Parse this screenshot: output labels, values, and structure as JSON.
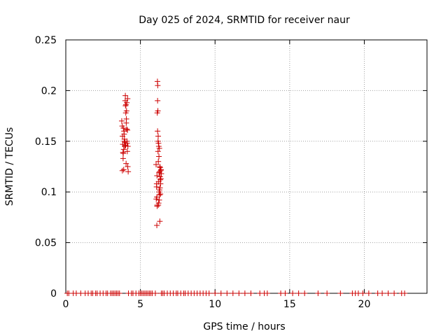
{
  "chart_data": {
    "type": "scatter",
    "title": "Day 025 of 2024, SRMTID for receiver naur",
    "xlabel": "GPS time / hours",
    "ylabel": "SRMTID / TECUs",
    "xlim": [
      0,
      24.2
    ],
    "ylim": [
      0,
      0.25
    ],
    "x_ticks": [
      {
        "value": 0,
        "label": "0"
      },
      {
        "value": 5,
        "label": "5"
      },
      {
        "value": 10,
        "label": "10"
      },
      {
        "value": 15,
        "label": "15"
      },
      {
        "value": 20,
        "label": "20"
      }
    ],
    "y_ticks": [
      {
        "value": 0,
        "label": "0"
      },
      {
        "value": 0.05,
        "label": "0.05"
      },
      {
        "value": 0.1,
        "label": "0.1"
      },
      {
        "value": 0.15,
        "label": "0.15"
      },
      {
        "value": 0.2,
        "label": "0.2"
      },
      {
        "value": 0.25,
        "label": "0.25"
      }
    ],
    "grid": true,
    "marker": "+",
    "color": "#cc0000",
    "series": [
      {
        "x": [
          3.75,
          3.78,
          3.8,
          3.82,
          3.85,
          3.88,
          3.9,
          3.92,
          3.95,
          3.98,
          4.0,
          4.02,
          4.05,
          4.08,
          4.1,
          4.12,
          4.15,
          4.18,
          3.86,
          3.93,
          3.97,
          4.03,
          4.07,
          4.11,
          3.83,
          3.79,
          4.14,
          3.99,
          3.91,
          4.01,
          4.06,
          4.16,
          3.84,
          3.96,
          4.09,
          4.13,
          3.88,
          4.04,
          6.05,
          6.08,
          6.1,
          6.12,
          6.15,
          6.18,
          6.2,
          6.22,
          6.25,
          6.28,
          6.3,
          6.32,
          6.35,
          6.38,
          6.4,
          6.15,
          6.17,
          6.19,
          6.21,
          6.23,
          6.1,
          6.12,
          6.26,
          6.29,
          6.31,
          6.33,
          6.36,
          6.14,
          6.16,
          6.24,
          6.27,
          6.34,
          6.11,
          6.22,
          6.3,
          6.18,
          6.09,
          6.37,
          6.13,
          6.25,
          6.2,
          6.28,
          6.06,
          6.32,
          0.1,
          0.2,
          0.5,
          0.7,
          1.0,
          1.3,
          1.5,
          1.7,
          1.8,
          2.0,
          2.1,
          2.3,
          2.5,
          2.7,
          2.8,
          3.0,
          3.1,
          3.2,
          3.3,
          3.4,
          3.5,
          3.6,
          4.2,
          4.4,
          4.5,
          4.7,
          4.9,
          5.0,
          5.1,
          5.2,
          5.3,
          5.4,
          5.5,
          5.6,
          5.7,
          5.8,
          6.0,
          6.4,
          6.5,
          6.6,
          6.8,
          7.0,
          7.2,
          7.4,
          7.5,
          7.7,
          7.9,
          8.0,
          8.2,
          8.4,
          8.6,
          8.8,
          9.0,
          9.2,
          9.4,
          9.6,
          10.0,
          10.4,
          10.8,
          11.2,
          11.6,
          12.0,
          12.4,
          13.0,
          13.3,
          13.5,
          14.4,
          14.7,
          15.2,
          15.6,
          16.0,
          16.9,
          17.5,
          18.4,
          19.2,
          19.4,
          19.6,
          19.9,
          20.3,
          20.9,
          21.2,
          21.6,
          22.0,
          22.5,
          22.7
        ],
        "y": [
          0.17,
          0.165,
          0.155,
          0.147,
          0.138,
          0.122,
          0.16,
          0.15,
          0.145,
          0.19,
          0.185,
          0.178,
          0.168,
          0.162,
          0.15,
          0.14,
          0.125,
          0.12,
          0.163,
          0.152,
          0.146,
          0.186,
          0.18,
          0.148,
          0.139,
          0.121,
          0.192,
          0.195,
          0.157,
          0.146,
          0.172,
          0.145,
          0.133,
          0.149,
          0.188,
          0.161,
          0.142,
          0.128,
          0.127,
          0.105,
          0.095,
          0.087,
          0.16,
          0.14,
          0.13,
          0.11,
          0.1,
          0.12,
          0.125,
          0.115,
          0.108,
          0.122,
          0.118,
          0.19,
          0.18,
          0.155,
          0.148,
          0.145,
          0.067,
          0.086,
          0.092,
          0.097,
          0.104,
          0.112,
          0.121,
          0.209,
          0.205,
          0.135,
          0.143,
          0.098,
          0.116,
          0.089,
          0.071,
          0.15,
          0.108,
          0.113,
          0.178,
          0.119,
          0.087,
          0.102,
          0.093,
          0.124,
          0,
          0,
          0,
          0,
          0,
          0,
          0,
          0,
          0,
          0,
          0,
          0,
          0,
          0,
          0,
          0,
          0,
          0,
          0,
          0,
          0,
          0,
          0,
          0,
          0,
          0,
          0,
          0,
          0,
          0,
          0,
          0,
          0,
          0,
          0,
          0,
          0,
          0,
          0,
          0,
          0,
          0,
          0,
          0,
          0,
          0,
          0,
          0,
          0,
          0,
          0,
          0,
          0,
          0,
          0,
          0,
          0,
          0,
          0,
          0,
          0,
          0,
          0,
          0,
          0,
          0,
          0,
          0,
          0,
          0,
          0,
          0,
          0,
          0,
          0,
          0,
          0,
          0,
          0,
          0,
          0,
          0,
          0,
          0,
          0
        ]
      }
    ]
  }
}
